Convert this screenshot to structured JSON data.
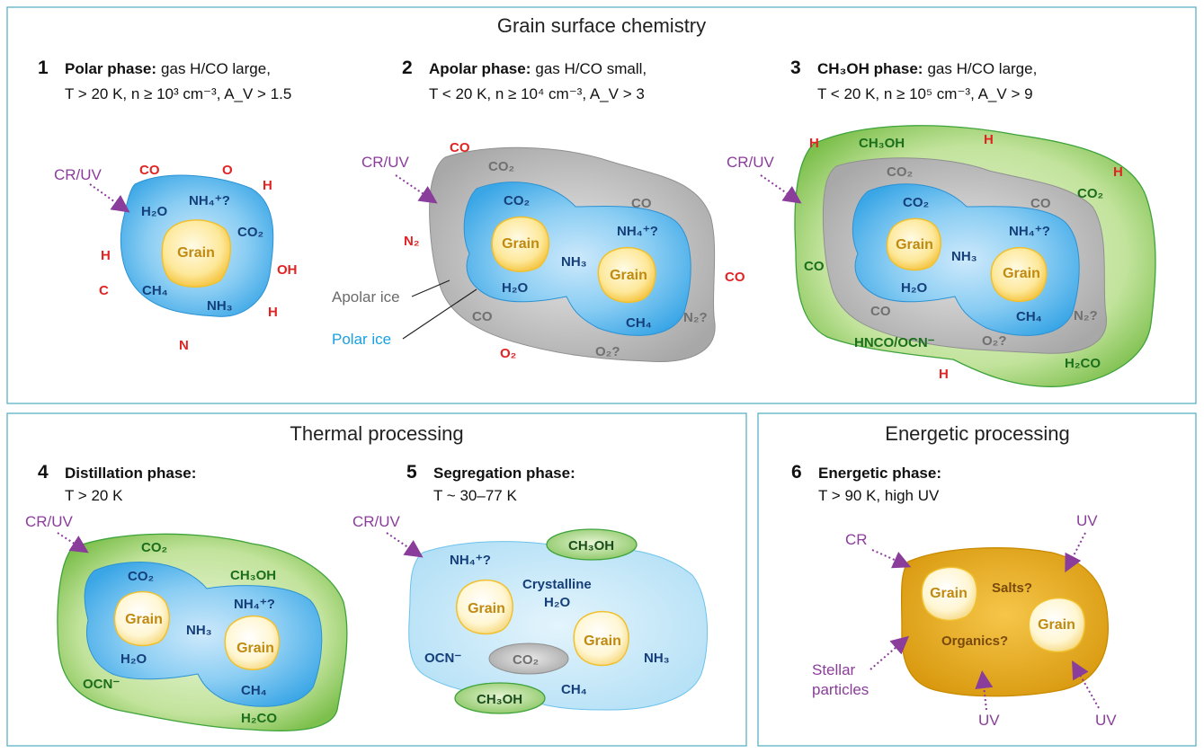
{
  "panels": {
    "grain_surface": "Grain surface chemistry",
    "thermal": "Thermal processing",
    "energetic": "Energetic processing"
  },
  "phases": {
    "p1": {
      "num": "1",
      "name": "Polar phase:",
      "cond": "gas H/CO large,",
      "line2": "T > 20 K, n ≥ 10³ cm⁻³, A_V > 1.5"
    },
    "p2": {
      "num": "2",
      "name": "Apolar phase:",
      "cond": "gas H/CO small,",
      "line2": "T < 20 K, n ≥ 10⁴ cm⁻³, A_V > 3"
    },
    "p3": {
      "num": "3",
      "name": "CH₃OH phase:",
      "cond": "gas H/CO large,",
      "line2": "T < 20 K, n ≥ 10⁵ cm⁻³, A_V > 9"
    },
    "p4": {
      "num": "4",
      "name": "Distillation phase:",
      "line2": "T > 20 K"
    },
    "p5": {
      "num": "5",
      "name": "Segregation phase:",
      "line2": "T ~ 30–77 K"
    },
    "p6": {
      "num": "6",
      "name": "Energetic phase:",
      "line2": "T > 90 K, high UV"
    }
  },
  "labels": {
    "grain": "Grain",
    "cruv": "CR/UV",
    "cr": "CR",
    "uv": "UV",
    "stellar1": "Stellar",
    "stellar2": "particles",
    "apolar_ice": "Apolar ice",
    "polar_ice": "Polar ice",
    "crystalline": "Crystalline",
    "salts": "Salts?",
    "organics": "Organics?"
  },
  "molecules": {
    "co": "CO",
    "o": "O",
    "h": "H",
    "c": "C",
    "n": "N",
    "oh": "OH",
    "n2": "N₂",
    "o2": "O₂",
    "h2o": "H₂O",
    "nh4": "NH₄⁺?",
    "co2": "CO₂",
    "ch4": "CH₄",
    "nh3": "NH₃",
    "n2q": "N₂?",
    "o2q": "O₂?",
    "ch3oh": "CH₃OH",
    "hnco": "HNCO/OCN⁻",
    "h2co": "H₂CO",
    "ocn": "OCN⁻"
  },
  "colors": {
    "polar_ice": "#5ab8ec",
    "apolar_ice": "#bdbdbd",
    "ch3oh_ice": "#b9dc95",
    "grain": "#fce38a",
    "energetic": "#eab01b",
    "frame": "#5ab0c7",
    "arrow": "#8a3d9a"
  }
}
